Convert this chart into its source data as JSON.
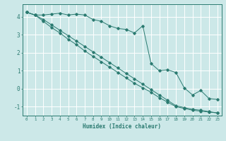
{
  "xlabel": "Humidex (Indice chaleur)",
  "background_color": "#cce8e8",
  "line_color": "#2a7a70",
  "grid_color": "#ffffff",
  "xlim": [
    -0.5,
    23.5
  ],
  "ylim": [
    -1.5,
    4.7
  ],
  "yticks": [
    -1,
    0,
    1,
    2,
    3,
    4
  ],
  "xticks": [
    0,
    1,
    2,
    3,
    4,
    5,
    6,
    7,
    8,
    9,
    10,
    11,
    12,
    13,
    14,
    15,
    16,
    17,
    18,
    19,
    20,
    21,
    22,
    23
  ],
  "series1_x": [
    0,
    1,
    2,
    3,
    4,
    5,
    6,
    7,
    8,
    9,
    10,
    11,
    12,
    13,
    14,
    15,
    16,
    17,
    18,
    19,
    20,
    21,
    22,
    23
  ],
  "series1_y": [
    4.25,
    4.1,
    4.1,
    4.15,
    4.2,
    4.1,
    4.15,
    4.1,
    3.85,
    3.75,
    3.5,
    3.35,
    3.3,
    3.1,
    3.5,
    1.4,
    1.0,
    1.05,
    0.9,
    0.05,
    -0.35,
    -0.1,
    -0.55,
    -0.6
  ],
  "series2_x": [
    0,
    1,
    2,
    3,
    4,
    5,
    6,
    7,
    8,
    9,
    10,
    11,
    12,
    13,
    14,
    15,
    16,
    17,
    18,
    19,
    20,
    21,
    22,
    23
  ],
  "series2_y": [
    4.25,
    4.1,
    3.75,
    3.4,
    3.1,
    2.75,
    2.45,
    2.1,
    1.8,
    1.5,
    1.2,
    0.9,
    0.6,
    0.3,
    0.05,
    -0.2,
    -0.5,
    -0.75,
    -1.0,
    -1.1,
    -1.2,
    -1.25,
    -1.3,
    -1.35
  ],
  "series3_x": [
    0,
    1,
    2,
    3,
    4,
    5,
    6,
    7,
    8,
    9,
    10,
    11,
    12,
    13,
    14,
    15,
    16,
    17,
    18,
    19,
    20,
    21,
    22,
    23
  ],
  "series3_y": [
    4.25,
    4.1,
    3.85,
    3.55,
    3.25,
    2.95,
    2.65,
    2.35,
    2.05,
    1.75,
    1.45,
    1.15,
    0.85,
    0.55,
    0.25,
    -0.05,
    -0.35,
    -0.65,
    -0.95,
    -1.05,
    -1.15,
    -1.2,
    -1.28,
    -1.35
  ]
}
